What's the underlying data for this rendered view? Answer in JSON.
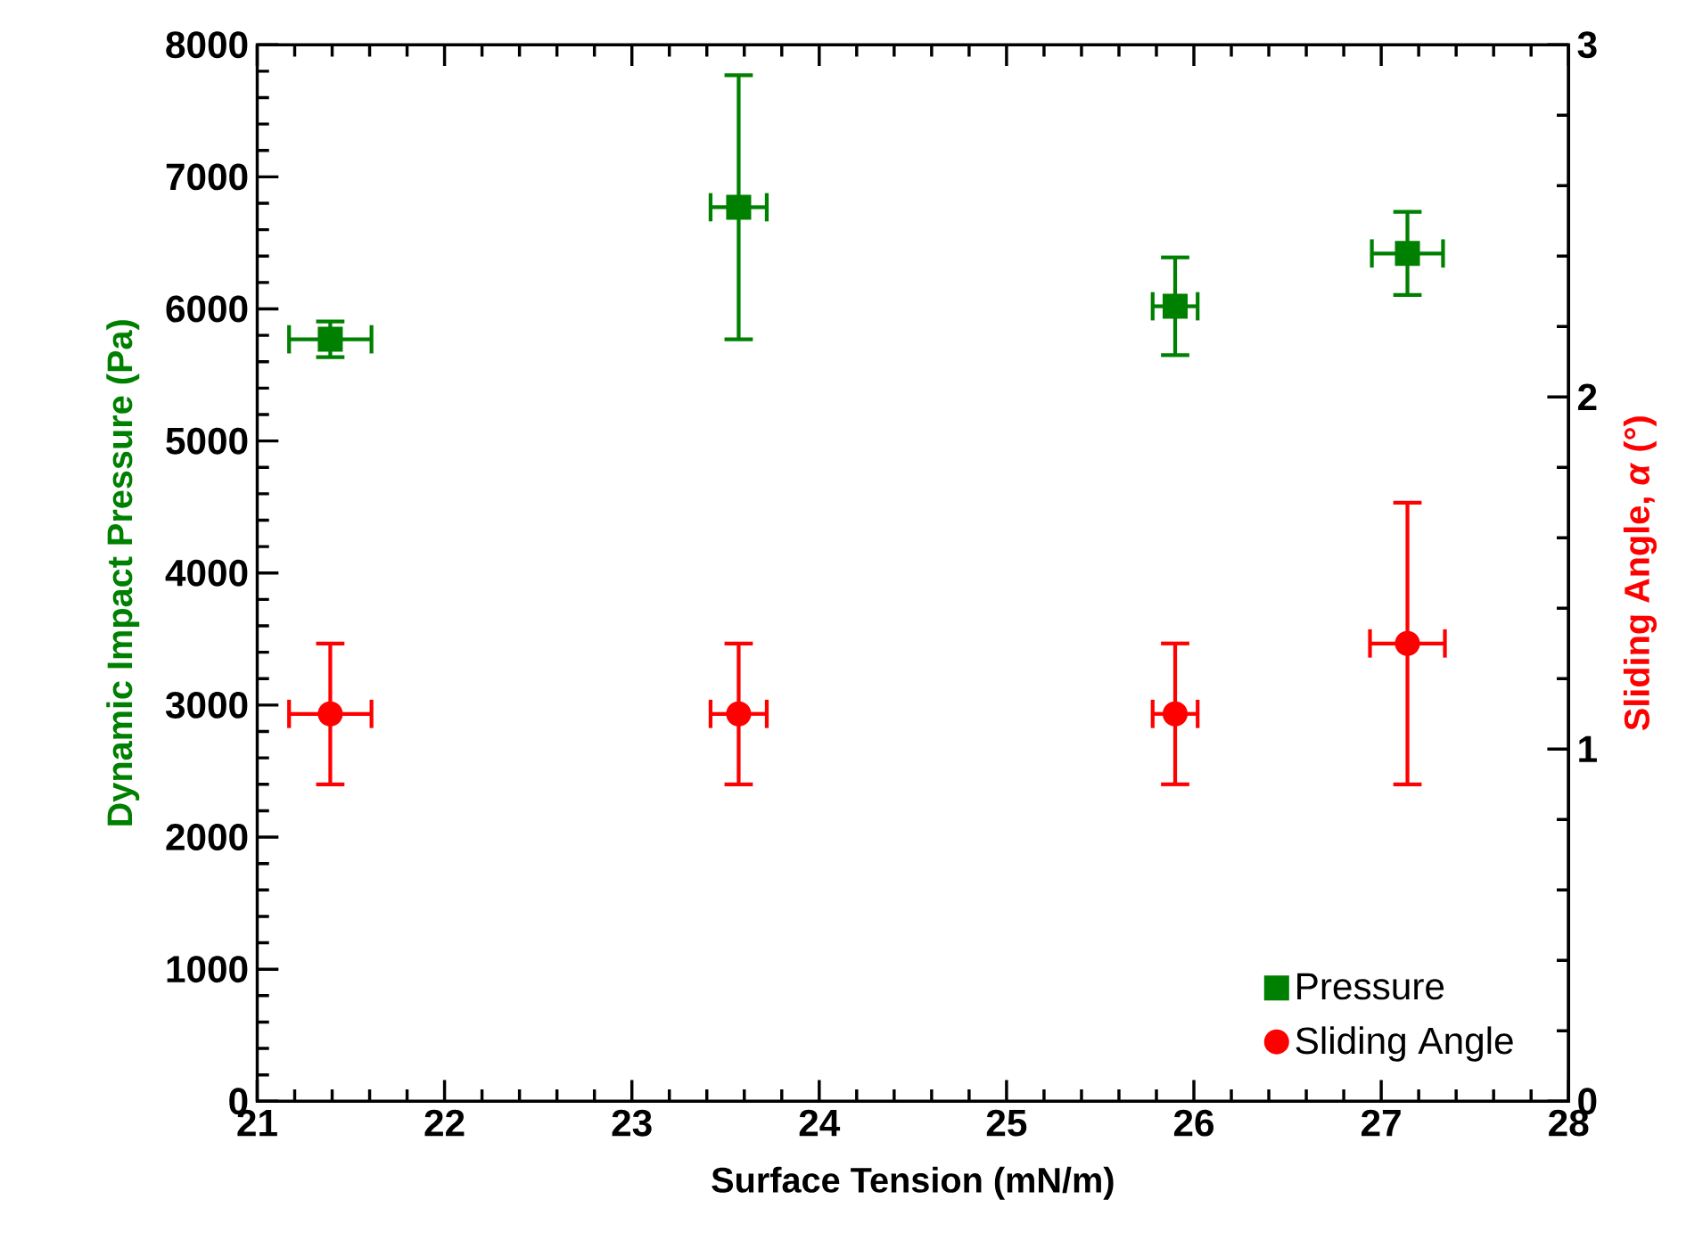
{
  "chart_data": {
    "type": "scatter",
    "xlabel": "Surface Tension (mN/m)",
    "ylabel": "Dynamic Impact Pressure (Pa)",
    "y2label": "Sliding Angle, *α* (°)",
    "xlim": [
      21,
      28
    ],
    "xticks": [
      21,
      22,
      23,
      24,
      25,
      26,
      27,
      28
    ],
    "ylim": [
      0,
      8000
    ],
    "yticks": [
      0,
      1000,
      2000,
      3000,
      4000,
      5000,
      6000,
      7000,
      8000
    ],
    "y2lim": [
      0,
      3
    ],
    "y2ticks": [
      0,
      1,
      2,
      3
    ],
    "legend": "bottom right",
    "series": [
      {
        "name": "Pressure",
        "color": "#008000",
        "marker": "square",
        "x": [
          21.39,
          23.57,
          25.9,
          27.14
        ],
        "values": [
          5770,
          6770,
          6020,
          6420
        ],
        "errors": [
          135,
          1000,
          370,
          315
        ],
        "xerrors": [
          0.22,
          0.15,
          0.12,
          0.19
        ]
      },
      {
        "name": "Sliding Angle",
        "color": "#ff0000",
        "marker": "circle",
        "axis": "y2",
        "x": [
          21.39,
          23.57,
          25.9,
          27.14
        ],
        "values": [
          1.1,
          1.1,
          1.1,
          1.3
        ],
        "errors": [
          0.2,
          0.2,
          0.2,
          0.4
        ],
        "xerrors": [
          0.22,
          0.15,
          0.12,
          0.2
        ]
      }
    ]
  }
}
